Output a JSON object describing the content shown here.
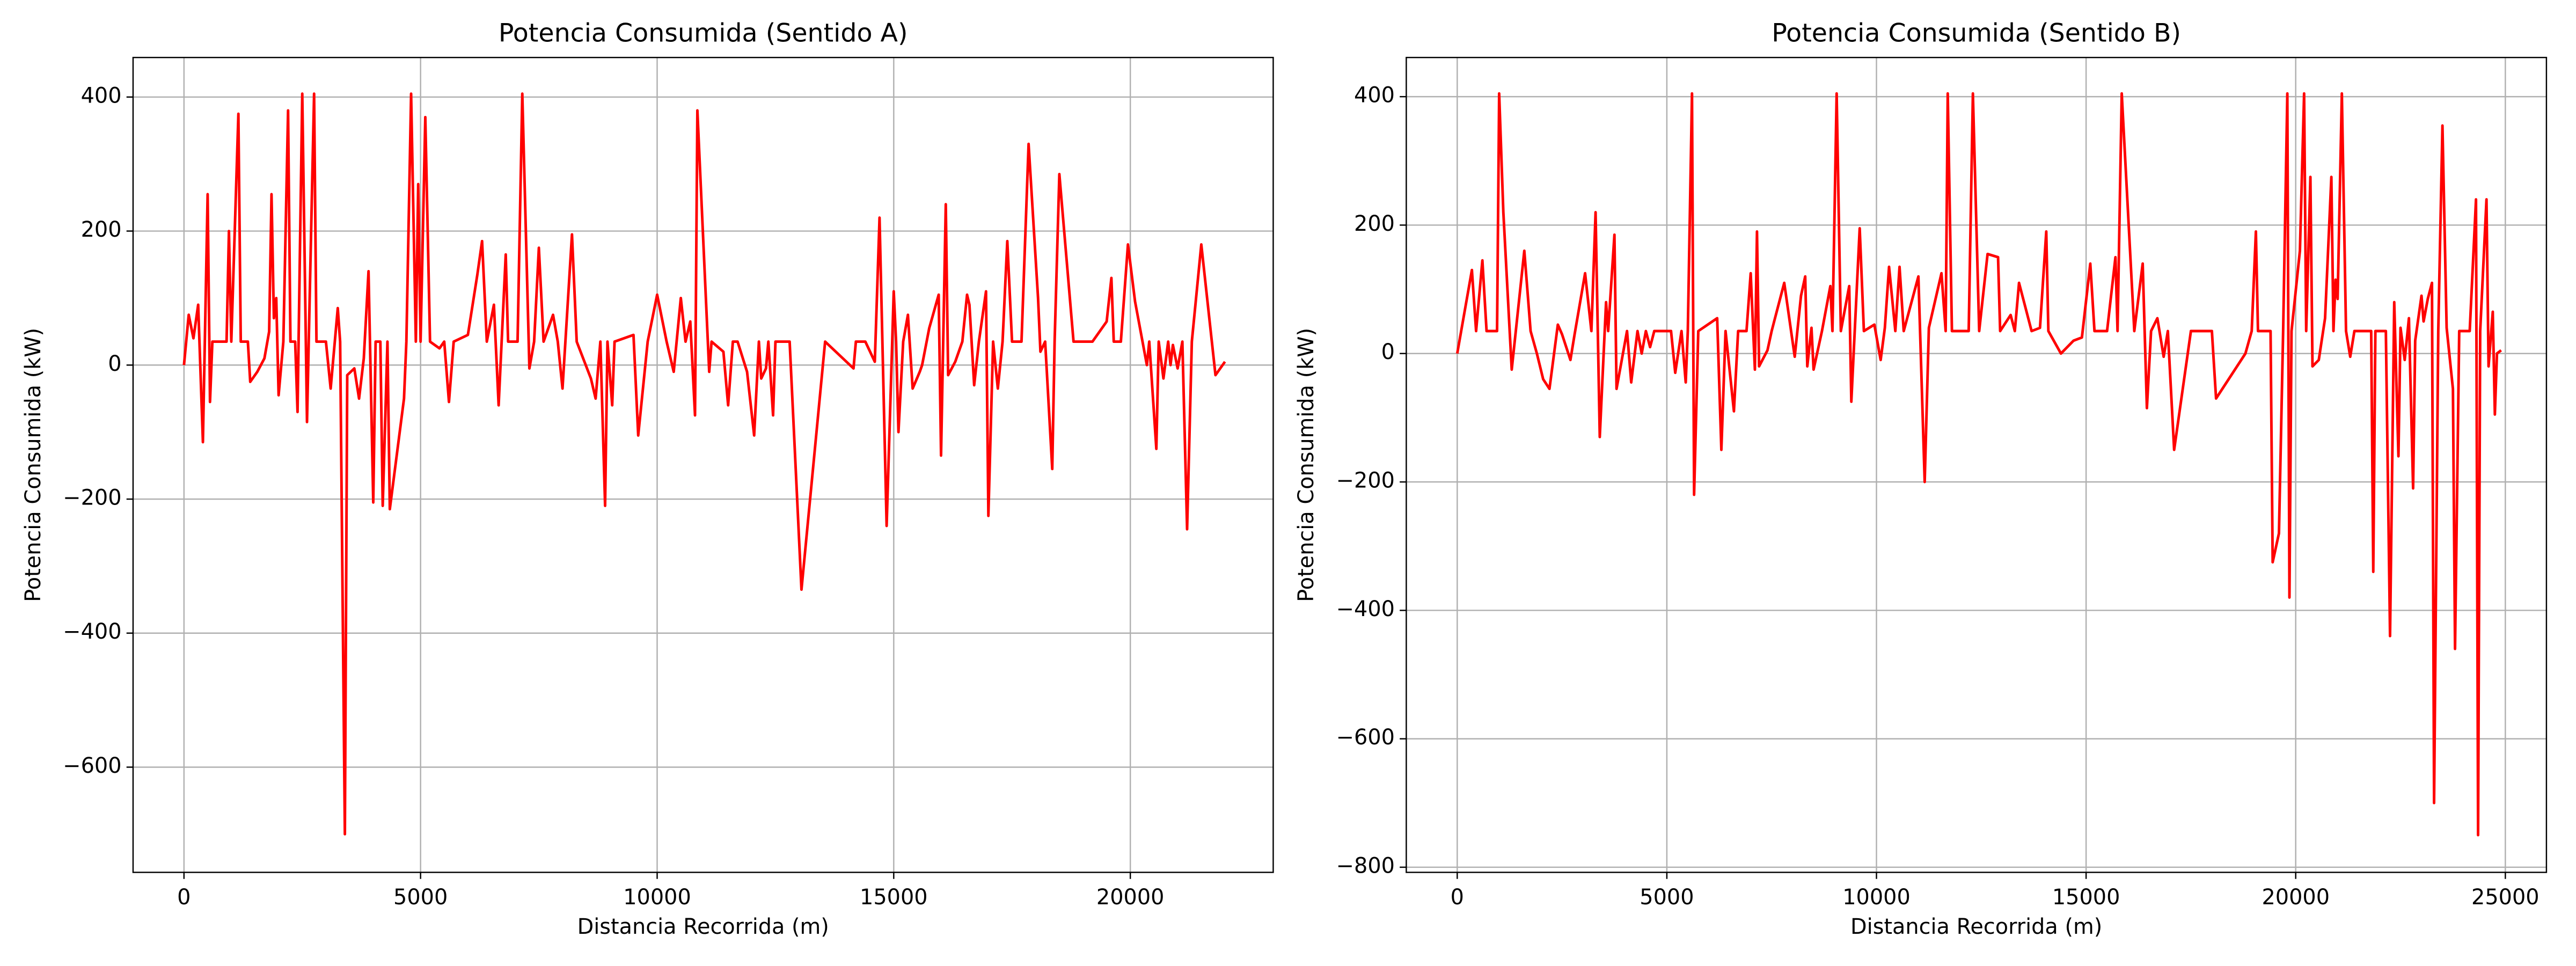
{
  "chart_data": [
    {
      "type": "line",
      "title": "Potencia Consumida (Sentido A)",
      "x_label": "Distancia Recorrida (m)",
      "y_label": "Potencia Consumida (kW)",
      "xlim": [
        -1076,
        23020
      ],
      "ylim": [
        -757,
        459
      ],
      "grid": true,
      "xticks": [
        0,
        5000,
        10000,
        15000,
        20000
      ],
      "yticks": [
        {
          "value": -600,
          "label": "−600"
        },
        {
          "value": -400,
          "label": "−400"
        },
        {
          "value": -200,
          "label": "−200"
        },
        0,
        200,
        400
      ],
      "color": "#ff0000",
      "x": [
        0,
        100,
        200,
        300,
        400,
        500,
        550,
        600,
        900,
        950,
        1000,
        1150,
        1200,
        1350,
        1400,
        1550,
        1700,
        1800,
        1850,
        1900,
        1950,
        2000,
        2100,
        2200,
        2250,
        2350,
        2400,
        2500,
        2600,
        2750,
        2800,
        3000,
        3100,
        3250,
        3300,
        3400,
        3450,
        3600,
        3700,
        3800,
        3900,
        4000,
        4050,
        4150,
        4200,
        4300,
        4350,
        4650,
        4700,
        4800,
        4900,
        4950,
        5000,
        5100,
        5200,
        5400,
        5500,
        5600,
        5700,
        6000,
        6200,
        6300,
        6400,
        6550,
        6650,
        6800,
        6850,
        7050,
        7150,
        7300,
        7400,
        7500,
        7600,
        7800,
        7900,
        8000,
        8200,
        8300,
        8600,
        8700,
        8800,
        8900,
        8950,
        9050,
        9100,
        9500,
        9600,
        9800,
        10000,
        10200,
        10350,
        10500,
        10600,
        10700,
        10800,
        10850,
        11100,
        11150,
        11400,
        11500,
        11600,
        11700,
        11900,
        12050,
        12150,
        12200,
        12300,
        12350,
        12450,
        12500,
        12800,
        13050,
        13300,
        13550,
        14150,
        14200,
        14400,
        14600,
        14700,
        14850,
        15000,
        15050,
        15100,
        15200,
        15300,
        15400,
        15550,
        15600,
        15750,
        15950,
        16000,
        16100,
        16150,
        16300,
        16450,
        16550,
        16600,
        16700,
        16800,
        16950,
        17000,
        17100,
        17200,
        17300,
        17400,
        17500,
        17700,
        17850,
        18050,
        18100,
        18200,
        18350,
        18400,
        18500,
        18800,
        19200,
        19500,
        19600,
        19650,
        19800,
        19950,
        20100,
        20350,
        20400,
        20550,
        20600,
        20700,
        20800,
        20850,
        20900,
        21000,
        21100,
        21200,
        21300,
        21500,
        21800,
        22000
      ],
      "values": [
        0,
        75,
        40,
        90,
        -115,
        255,
        -55,
        35,
        35,
        200,
        35,
        375,
        35,
        35,
        -25,
        -10,
        10,
        50,
        255,
        70,
        100,
        -45,
        35,
        380,
        35,
        35,
        -70,
        405,
        -85,
        405,
        35,
        35,
        -35,
        85,
        35,
        -700,
        -15,
        -5,
        -50,
        10,
        140,
        -205,
        35,
        35,
        -210,
        35,
        -215,
        -50,
        35,
        405,
        35,
        270,
        35,
        370,
        35,
        25,
        35,
        -55,
        35,
        45,
        135,
        185,
        35,
        90,
        -60,
        165,
        35,
        35,
        405,
        -5,
        35,
        175,
        35,
        75,
        35,
        -35,
        195,
        35,
        -20,
        -50,
        35,
        -210,
        35,
        -60,
        35,
        45,
        -105,
        35,
        105,
        35,
        -10,
        100,
        35,
        65,
        -75,
        380,
        -10,
        35,
        20,
        -60,
        35,
        35,
        -10,
        -105,
        35,
        -20,
        -5,
        35,
        -75,
        35,
        35,
        -335,
        -150,
        35,
        -5,
        35,
        35,
        5,
        220,
        -240,
        110,
        35,
        -100,
        35,
        75,
        -35,
        -10,
        0,
        55,
        105,
        -135,
        240,
        -15,
        5,
        35,
        105,
        90,
        -30,
        35,
        110,
        -225,
        35,
        -35,
        35,
        185,
        35,
        35,
        330,
        100,
        20,
        35,
        -155,
        35,
        285,
        35,
        35,
        65,
        130,
        35,
        35,
        180,
        95,
        0,
        35,
        -125,
        35,
        -20,
        35,
        0,
        30,
        -5,
        35,
        -245,
        35,
        180,
        -15,
        5
      ]
    },
    {
      "type": "line",
      "title": "Potencia Consumida (Sentido B)",
      "x_label": "Distancia Recorrida (m)",
      "y_label": "Potencia Consumida (kW)",
      "xlim": [
        -1215,
        25980
      ],
      "ylim": [
        -808,
        461
      ],
      "grid": true,
      "xticks": [
        0,
        5000,
        10000,
        15000,
        20000,
        25000
      ],
      "yticks": [
        {
          "value": -800,
          "label": "−800"
        },
        {
          "value": -600,
          "label": "−600"
        },
        {
          "value": -400,
          "label": "−400"
        },
        {
          "value": -200,
          "label": "−200"
        },
        0,
        200,
        400
      ],
      "color": "#ff0000",
      "x": [
        0,
        350,
        450,
        600,
        700,
        950,
        1000,
        1100,
        1300,
        1600,
        1750,
        1900,
        2050,
        2200,
        2400,
        2500,
        2700,
        2800,
        3050,
        3200,
        3300,
        3400,
        3550,
        3600,
        3750,
        3800,
        4050,
        4150,
        4300,
        4400,
        4500,
        4600,
        4700,
        5100,
        5200,
        5350,
        5450,
        5500,
        5600,
        5650,
        5750,
        6200,
        6300,
        6400,
        6600,
        6700,
        6900,
        7000,
        7100,
        7150,
        7200,
        7400,
        7500,
        7600,
        7800,
        8050,
        8200,
        8300,
        8350,
        8450,
        8500,
        8700,
        8900,
        8950,
        9050,
        9150,
        9350,
        9400,
        9600,
        9700,
        9950,
        10100,
        10200,
        10300,
        10450,
        10550,
        10650,
        11000,
        11150,
        11250,
        11550,
        11650,
        11700,
        11800,
        12200,
        12300,
        12450,
        12650,
        12900,
        12950,
        13200,
        13300,
        13400,
        13700,
        13900,
        14050,
        14100,
        14400,
        14700,
        14900,
        15100,
        15200,
        15500,
        15700,
        15750,
        15850,
        16150,
        16350,
        16450,
        16550,
        16700,
        16850,
        16950,
        17100,
        17500,
        18000,
        18100,
        18800,
        18950,
        19050,
        19100,
        19400,
        19450,
        19600,
        19700,
        19800,
        19850,
        19900,
        20100,
        20200,
        20250,
        20350,
        20400,
        20550,
        20700,
        20850,
        20900,
        20950,
        21000,
        21100,
        21200,
        21300,
        21400,
        21800,
        21850,
        21900,
        22150,
        22250,
        22350,
        22450,
        22500,
        22600,
        22700,
        22800,
        22850,
        23000,
        23050,
        23150,
        23250,
        23300,
        23400,
        23500,
        23600,
        23750,
        23800,
        23900,
        24150,
        24300,
        24350,
        24400,
        24550,
        24600,
        24700,
        24750,
        24800,
        24900
      ],
      "values": [
        0,
        130,
        35,
        145,
        35,
        35,
        405,
        220,
        -25,
        160,
        35,
        0,
        -40,
        -55,
        45,
        30,
        -10,
        30,
        125,
        35,
        220,
        -130,
        80,
        35,
        185,
        -55,
        35,
        -45,
        35,
        0,
        35,
        10,
        35,
        35,
        -30,
        35,
        -45,
        35,
        405,
        -220,
        35,
        55,
        -150,
        35,
        -90,
        35,
        35,
        125,
        -25,
        190,
        -20,
        5,
        35,
        60,
        110,
        -5,
        90,
        120,
        -20,
        40,
        -25,
        35,
        105,
        35,
        405,
        35,
        105,
        -75,
        195,
        35,
        45,
        -10,
        40,
        135,
        35,
        135,
        35,
        120,
        -200,
        40,
        125,
        35,
        405,
        35,
        35,
        405,
        35,
        155,
        150,
        35,
        60,
        35,
        110,
        35,
        40,
        190,
        35,
        0,
        20,
        25,
        140,
        35,
        35,
        150,
        35,
        405,
        35,
        140,
        -85,
        35,
        55,
        -5,
        35,
        -150,
        35,
        35,
        -70,
        0,
        35,
        190,
        35,
        35,
        -325,
        -280,
        35,
        405,
        -380,
        35,
        160,
        405,
        35,
        275,
        -20,
        -10,
        55,
        275,
        35,
        115,
        85,
        405,
        35,
        -5,
        35,
        35,
        -340,
        35,
        35,
        -440,
        80,
        -160,
        40,
        -10,
        55,
        -210,
        20,
        90,
        50,
        85,
        110,
        -700,
        35,
        355,
        40,
        -55,
        -460,
        35,
        35,
        240,
        -750,
        35,
        240,
        -20,
        65,
        -95,
        0,
        5
      ]
    }
  ]
}
